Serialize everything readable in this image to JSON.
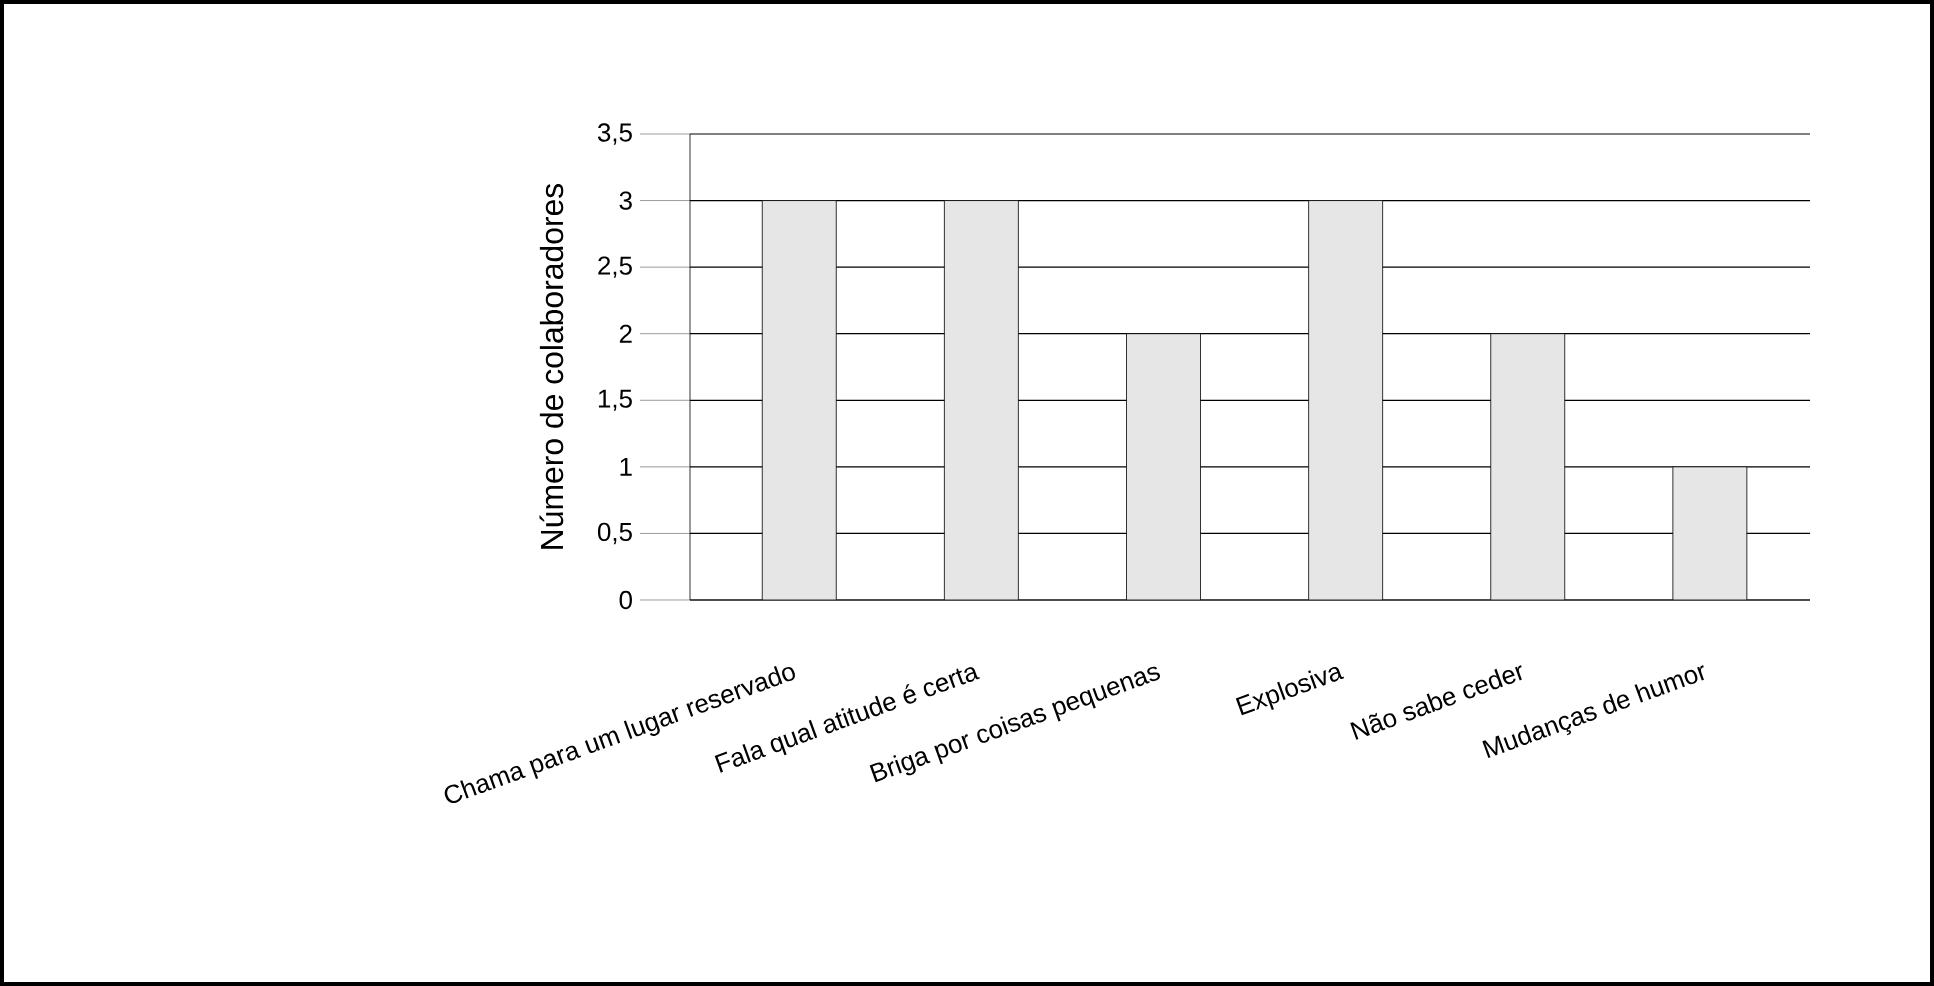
{
  "chart_data": {
    "type": "bar",
    "ylabel": "Número de colaboradores",
    "categories": [
      "Chama para um lugar reservado",
      "Fala qual atitude é certa",
      "Briga por coisas pequenas",
      "Explosiva",
      "Não sabe ceder",
      "Mudanças de humor"
    ],
    "values": [
      3,
      3,
      2,
      3,
      2,
      1
    ],
    "color": "#e6e6e6",
    "ylim": [
      0,
      3.5
    ],
    "yticks": [
      0,
      {
        "value": 0.5,
        "label": "0,5"
      },
      1,
      {
        "value": 1.5,
        "label": "1,5"
      },
      2,
      {
        "value": 2.5,
        "label": "2,5"
      },
      3,
      {
        "value": 3.5,
        "label": "3,5"
      }
    ],
    "grid": "y"
  }
}
